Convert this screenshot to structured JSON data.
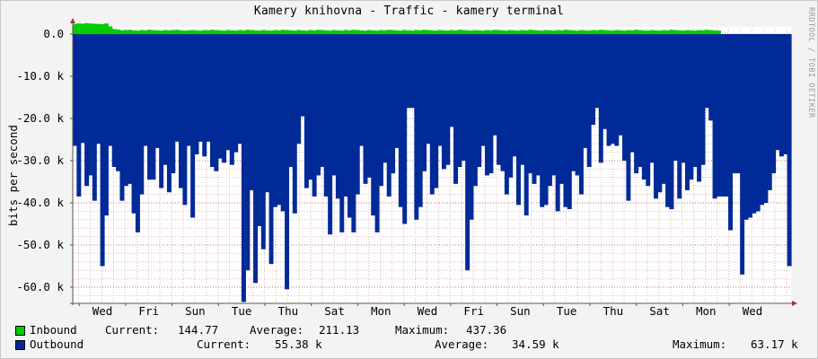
{
  "title": "Kamery knihovna - Traffic - kamery terminal",
  "watermark": "RRDTOOL / TOBI OETIKER",
  "colors": {
    "background": "#f3f3f3",
    "canvas": "#ffffff",
    "inbound": "#00cc00",
    "outbound": "#002a97",
    "grid_minor": "#e0b8b8",
    "grid_major": "#d07070",
    "axis": "#555555"
  },
  "chart_data": {
    "type": "area",
    "title": "Kamery knihovna - Traffic - kamery terminal",
    "ylabel": "bits per second",
    "ylim": [
      -64000,
      0
    ],
    "y_ticks": [
      {
        "value": 0,
        "label": "0.0"
      },
      {
        "value": -10000,
        "label": "-10.0 k"
      },
      {
        "value": -20000,
        "label": "-20.0 k"
      },
      {
        "value": -30000,
        "label": "-30.0 k"
      },
      {
        "value": -40000,
        "label": "-40.0 k"
      },
      {
        "value": -50000,
        "label": "-50.0 k"
      },
      {
        "value": -60000,
        "label": "-60.0 k"
      }
    ],
    "x_ticks": [
      "Wed",
      "Fri",
      "Sun",
      "Tue",
      "Thu",
      "Sat",
      "Mon",
      "Wed",
      "Fri",
      "Sun",
      "Tue",
      "Thu",
      "Sat",
      "Mon",
      "Wed"
    ],
    "series": [
      {
        "name": "Inbound",
        "color": "#00cc00",
        "values": [
          400,
          420,
          410,
          430,
          420,
          410,
          400,
          390,
          420,
          300,
          200,
          180,
          150,
          160,
          170,
          150,
          140,
          160,
          150,
          170,
          160,
          150,
          140,
          160,
          150,
          160,
          170,
          150,
          140,
          150,
          160,
          150,
          140,
          160,
          150,
          170,
          160,
          150,
          140,
          160,
          150,
          140,
          160,
          150,
          170,
          160,
          150,
          140,
          160,
          150,
          140,
          160,
          150,
          170,
          160,
          150,
          140,
          160,
          150,
          140,
          160,
          150,
          170,
          160,
          150,
          140,
          160,
          150,
          140,
          160,
          150,
          170,
          160,
          150,
          140,
          160,
          150,
          140,
          160,
          150,
          170,
          160,
          150,
          140,
          160,
          150,
          140,
          160,
          150,
          170,
          160,
          150,
          140,
          160,
          150,
          140,
          160,
          150,
          170,
          160,
          150,
          140,
          160,
          150,
          140,
          160,
          150,
          170,
          160,
          150,
          140,
          160,
          150,
          140,
          160,
          150,
          170,
          160,
          150,
          140,
          160,
          150,
          140,
          160,
          150,
          170,
          160,
          150,
          140,
          160,
          150,
          140,
          160,
          150,
          170,
          160,
          150,
          140,
          160,
          150,
          140,
          160,
          150,
          170,
          160,
          150,
          140,
          160,
          150,
          140,
          160,
          150,
          170,
          160,
          150,
          140,
          160,
          150,
          140,
          160,
          150,
          170,
          160,
          150,
          140,
          0,
          0,
          0,
          0,
          0,
          0,
          0,
          0,
          0,
          0,
          0,
          0,
          0,
          0,
          0,
          0,
          0,
          0,
          0,
          0
        ]
      },
      {
        "name": "Outbound",
        "color": "#002a97",
        "values": [
          -26500,
          -38500,
          -25800,
          -36000,
          -33500,
          -39500,
          -26000,
          -55000,
          -43000,
          -26500,
          -31500,
          -32500,
          -39500,
          -36000,
          -35500,
          -42500,
          -47000,
          -38000,
          -26500,
          -34500,
          -34500,
          -27000,
          -36500,
          -31000,
          -37500,
          -33000,
          -25500,
          -36500,
          -40500,
          -26500,
          -43500,
          -28500,
          -25500,
          -29000,
          -25500,
          -31500,
          -32500,
          -29500,
          -30500,
          -27500,
          -31000,
          -28000,
          -26000,
          -63500,
          -56000,
          -37000,
          -59000,
          -45500,
          -51000,
          -37500,
          -54500,
          -41000,
          -40500,
          -42000,
          -60500,
          -31500,
          -42500,
          -26000,
          -19500,
          -36500,
          -34500,
          -38500,
          -33500,
          -31500,
          -38500,
          -47500,
          -33500,
          -39000,
          -47000,
          -38500,
          -43500,
          -47000,
          -38000,
          -26500,
          -35500,
          -34000,
          -43000,
          -47000,
          -36000,
          -30500,
          -38500,
          -33000,
          -27000,
          -41000,
          -45000,
          -17500,
          -17500,
          -44000,
          -41000,
          -32500,
          -26000,
          -38000,
          -36500,
          -26500,
          -32000,
          -31000,
          -22000,
          -35500,
          -31500,
          -30000,
          -56000,
          -44000,
          -36000,
          -31500,
          -26500,
          -33500,
          -33000,
          -24000,
          -31000,
          -32500,
          -38000,
          -34000,
          -29000,
          -40500,
          -31000,
          -43000,
          -33000,
          -35500,
          -33500,
          -41000,
          -40500,
          -36000,
          -33500,
          -42000,
          -35500,
          -41000,
          -41500,
          -32500,
          -33500,
          -38000,
          -27000,
          -31500,
          -21500,
          -17500,
          -30500,
          -22500,
          -26500,
          -26000,
          -26500,
          -24000,
          -30000,
          -39500,
          -28000,
          -33000,
          -31500,
          -34500,
          -36000,
          -30500,
          -39000,
          -37500,
          -35500,
          -41000,
          -41500,
          -30000,
          -39000,
          -30500,
          -37000,
          -34500,
          -31500,
          -35000,
          -31000,
          -17500,
          -20500,
          -39000,
          -38500,
          -38500,
          -38500,
          -46500,
          -33000,
          -33000,
          -57000,
          -44000,
          -43500,
          -42500,
          -42000,
          -40500,
          -40000,
          -37000,
          -33000,
          -27500,
          -29000,
          -28500,
          -55000
        ]
      }
    ]
  },
  "legend": {
    "inbound": {
      "name": "Inbound",
      "current_label": "Current:",
      "current": "144.77",
      "average_label": "Average:",
      "average": "211.13",
      "maximum_label": "Maximum:",
      "maximum": "437.36"
    },
    "outbound": {
      "name": "Outbound",
      "current_label": "Current:",
      "current": "55.38 k",
      "average_label": "Average:",
      "average": "34.59 k",
      "maximum_label": "Maximum:",
      "maximum": "63.17 k"
    }
  }
}
